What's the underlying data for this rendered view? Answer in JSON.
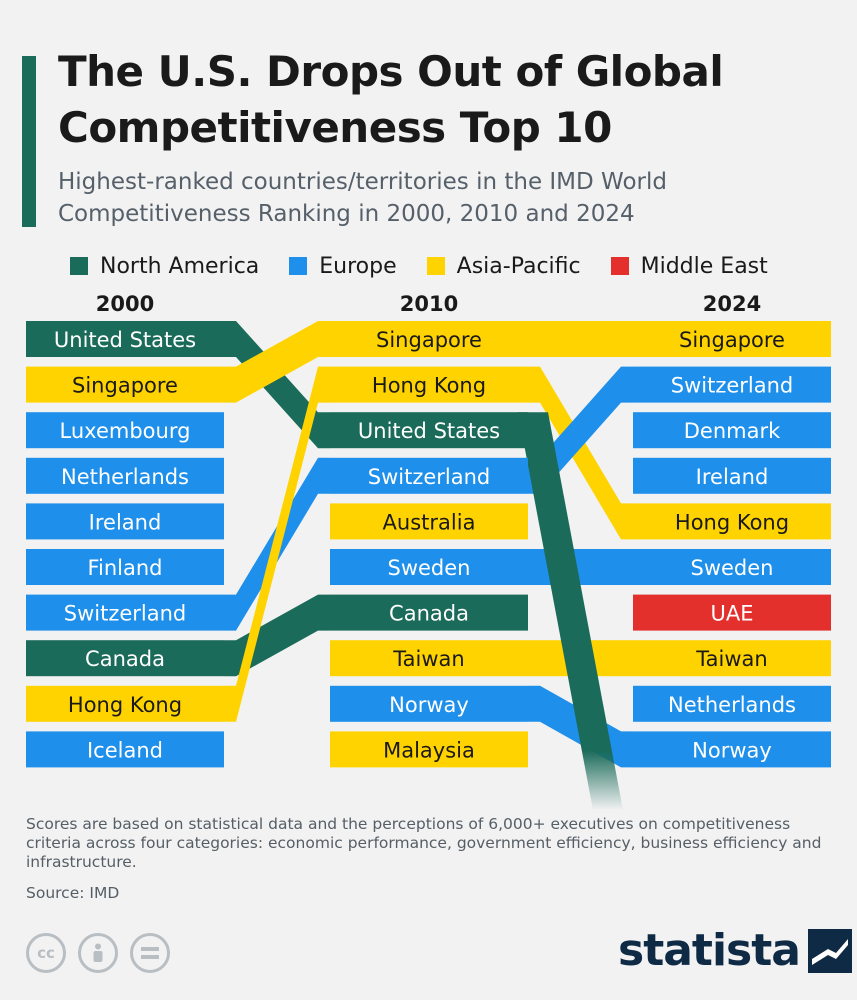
{
  "header": {
    "title": "The U.S. Drops Out of Global Competitiveness Top 10",
    "subtitle": "Highest-ranked countries/territories in the IMD World Competitiveness Ranking in 2000, 2010 and 2024"
  },
  "colors": {
    "accent": "#1a6b5a",
    "North America": "#1a6b5a",
    "Europe": "#1e8fea",
    "Asia-Pacific": "#ffd300",
    "Middle East": "#e3302c"
  },
  "legend": [
    {
      "label": "North America",
      "color": "#1a6b5a"
    },
    {
      "label": "Europe",
      "color": "#1e8fea"
    },
    {
      "label": "Asia-Pacific",
      "color": "#ffd300"
    },
    {
      "label": "Middle East",
      "color": "#e3302c"
    }
  ],
  "chart_data": {
    "type": "table",
    "years": [
      "2000",
      "2010",
      "2024"
    ],
    "rankings": {
      "2000": [
        "United States",
        "Singapore",
        "Luxembourg",
        "Netherlands",
        "Ireland",
        "Finland",
        "Switzerland",
        "Canada",
        "Hong Kong",
        "Iceland"
      ],
      "2010": [
        "Singapore",
        "Hong Kong",
        "United States",
        "Switzerland",
        "Australia",
        "Sweden",
        "Canada",
        "Taiwan",
        "Norway",
        "Malaysia"
      ],
      "2024": [
        "Singapore",
        "Switzerland",
        "Denmark",
        "Ireland",
        "Hong Kong",
        "Sweden",
        "UAE",
        "Taiwan",
        "Netherlands",
        "Norway"
      ]
    },
    "regions": {
      "United States": "North America",
      "Canada": "North America",
      "Singapore": "Asia-Pacific",
      "Hong Kong": "Asia-Pacific",
      "Australia": "Asia-Pacific",
      "Taiwan": "Asia-Pacific",
      "Malaysia": "Asia-Pacific",
      "Luxembourg": "Europe",
      "Netherlands": "Europe",
      "Ireland": "Europe",
      "Finland": "Europe",
      "Switzerland": "Europe",
      "Iceland": "Europe",
      "Sweden": "Europe",
      "Norway": "Europe",
      "Denmark": "Europe",
      "UAE": "Middle East"
    },
    "dropouts": [
      "United States"
    ]
  },
  "footer": {
    "note": "Scores are based on statistical data and the perceptions of 6,000+ executives on competitiveness criteria across four categories: economic performance, government efficiency, business efficiency and infrastructure.",
    "source": "Source: IMD",
    "cc_icons": [
      "cc-icon",
      "person-icon",
      "equals-icon"
    ],
    "brand": "statista"
  }
}
